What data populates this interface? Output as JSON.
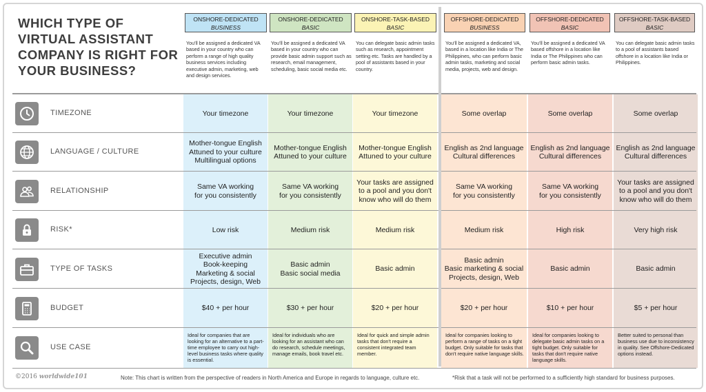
{
  "title": "WHICH TYPE OF VIRTUAL ASSISTANT COMPANY IS RIGHT FOR YOUR BUSINESS?",
  "columns": [
    {
      "line1": "ONSHORE-DEDICATED",
      "line2": "BUSINESS",
      "head_color": "#bfe3f5",
      "bg_color": "#dcf0fa",
      "desc": "You'll be assigned a dedicated VA based in your country who can perform a range of high quality business services including executive admin, marketing, web and design services."
    },
    {
      "line1": "ONSHORE-DEDICATED",
      "line2": "BASIC",
      "head_color": "#cfe5c2",
      "bg_color": "#e3f0da",
      "desc": "You'll be assigned a dedicated VA based in your country who can provide basic admin support such as research, email management, scheduling, basic social media etc."
    },
    {
      "line1": "ONSHORE-TASK-BASED",
      "line2": "BASIC",
      "head_color": "#fbf3b5",
      "bg_color": "#fdf8d8",
      "desc": "You can delegate basic admin tasks such as research, appointment setting etc. Tasks are handled by a pool of assistants based in your country."
    },
    {
      "line1": "OFFSHORE-DEDICATED",
      "line2": "BUSINESS",
      "head_color": "#f9d2b3",
      "bg_color": "#fde5d3",
      "desc": "You'll be assigned a dedicated VA, based in a location like India or The Philippines, who can perform basic admin tasks, marketing and social media, projects, web and design."
    },
    {
      "line1": "OFFSHORE-DEDICATED",
      "line2": "BASIC",
      "head_color": "#f1c3b5",
      "bg_color": "#f6d9cf",
      "desc": "You'll be assigned a dedicated VA based offshore in a location like India or The Philippines who can perform basic admin tasks."
    },
    {
      "line1": "OFFSHORE-TASK-BASED",
      "line2": "BASIC",
      "head_color": "#dfcbc3",
      "bg_color": "#e9dbd5",
      "desc": "You can delegate basic admin tasks to a pool of assistants based offshore in a location like India or Philippines."
    }
  ],
  "rows": [
    {
      "label": "TIMEZONE",
      "icon": "clock-icon",
      "cells": [
        "Your timezone",
        "Your timezone",
        "Your timezone",
        "Some overlap",
        "Some overlap",
        "Some overlap"
      ]
    },
    {
      "label": "LANGUAGE / CULTURE",
      "icon": "globe-icon",
      "cells": [
        "Mother-tongue English\nAttuned to your culture\nMultilingual options",
        "Mother-tongue English\nAttuned to your culture",
        "Mother-tongue English\nAttuned to your culture",
        "English as 2nd language\nCultural differences",
        "English as 2nd language\nCultural differences",
        "English as 2nd language\nCultural differences"
      ]
    },
    {
      "label": "RELATIONSHIP",
      "icon": "people-icon",
      "cells": [
        "Same VA working\nfor you consistently",
        "Same VA working\nfor you consistently",
        "Your tasks are assigned\nto a pool and you don't\nknow who will do them",
        "Same VA working\nfor you consistently",
        "Same VA working\nfor you consistently",
        "Your tasks are assigned\nto a pool and you don't\nknow who will do them"
      ]
    },
    {
      "label": "RISK*",
      "icon": "padlock-icon",
      "cells": [
        "Low risk",
        "Medium risk",
        "Medium risk",
        "Medium risk",
        "High risk",
        "Very high risk"
      ]
    },
    {
      "label": "TYPE OF TASKS",
      "icon": "briefcase-icon",
      "cells": [
        "Executive admin\nBook-keeping\nMarketing & social\nProjects, design, Web",
        "Basic admin\nBasic social media",
        "Basic admin",
        "Basic admin\nBasic marketing & social\nProjects, design, Web",
        "Basic admin",
        "Basic admin"
      ]
    },
    {
      "label": "BUDGET",
      "icon": "calculator-icon",
      "cells": [
        "$40 + per hour",
        "$30 + per hour",
        "$20 + per hour",
        "$20 + per hour",
        "$10 + per hour",
        "$5 + per hour"
      ]
    },
    {
      "label": "USE CASE",
      "icon": "magnifier-icon",
      "cells": [
        "Ideal for companies that are looking for an alternative to a part-time employee to carry out high-level business tasks where quality is essential.",
        "Ideal for individuals who are looking for an assistant who can do research, schedule meetings, manage emails, book travel etc.",
        "Ideal for quick and simple admin tasks that don't require a consistent integrated team member.",
        "Ideal for companies looking to perform a range of tasks on a tight budget.  Only suitable for tasks that don't require native language skills.",
        "Ideal for companies looking to delegate basic admin tasks on a tight budget. Only suitable for tasks that don't require native language skills.",
        "Better suited to personal than business use due to inconsistency in quality.  See Offshore-Dedicated options instead."
      ]
    }
  ],
  "footer": {
    "copyright": "©2016",
    "brand": "worldwide101",
    "note": "Note: This chart is written from the perspective of readers in North America and Europe in regards to language, culture etc.",
    "risk_note": "*Risk that a task will not be performed to a sufficiently high standard for business purposes."
  }
}
